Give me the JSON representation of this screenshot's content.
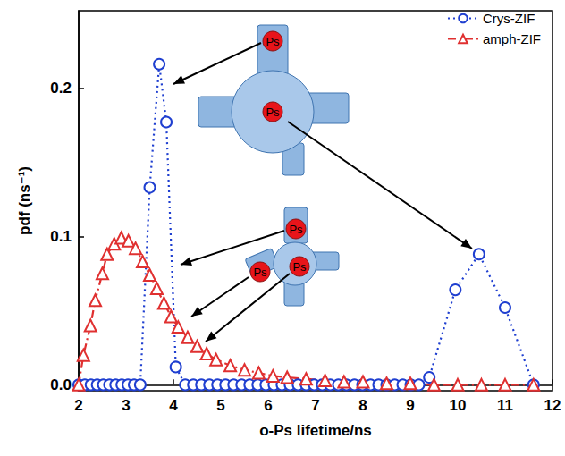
{
  "chart_data": {
    "type": "line",
    "x_label": "o-Ps lifetime/ns",
    "y_label": "pdf (ns⁻¹)",
    "xlim": [
      2,
      12
    ],
    "xticks": [
      2,
      3,
      4,
      5,
      6,
      7,
      8,
      9,
      10,
      11,
      12
    ],
    "ylim": [
      -0.004,
      0.252
    ],
    "yticks": [
      {
        "value": 0,
        "label": "0.0"
      },
      {
        "value": 0.1,
        "label": "0.1"
      },
      {
        "value": 0.2,
        "label": "0.2"
      }
    ],
    "grid": false,
    "legend": "upper right",
    "series": [
      {
        "name": "Crys-ZIF",
        "color": "#1f3fd0",
        "marker": "circle",
        "line_style": "dotted",
        "x": [
          2.0,
          2.13,
          2.26,
          2.39,
          2.52,
          2.65,
          2.78,
          2.91,
          3.04,
          3.17,
          3.3,
          3.5,
          3.7,
          3.85,
          4.05,
          4.25,
          4.42,
          4.59,
          4.76,
          4.93,
          5.1,
          5.27,
          5.44,
          5.61,
          5.78,
          5.95,
          6.12,
          6.29,
          6.46,
          6.63,
          6.8,
          6.97,
          7.14,
          7.31,
          7.48,
          7.65,
          7.82,
          7.99,
          8.16,
          8.33,
          8.5,
          8.67,
          8.84,
          9.01,
          9.18,
          9.4,
          9.95,
          10.45,
          11.0,
          11.6
        ],
        "values": [
          0,
          0,
          0,
          0,
          0,
          0,
          0,
          0,
          0,
          0,
          0,
          0.133,
          0.216,
          0.177,
          0.012,
          0,
          0,
          0,
          0,
          0,
          0,
          0,
          0,
          0,
          0,
          0,
          0,
          0,
          0,
          0,
          0,
          0,
          0,
          0,
          0,
          0,
          0,
          0,
          0,
          0,
          0,
          0,
          0,
          0,
          0,
          0.005,
          0.064,
          0.088,
          0.052,
          0
        ]
      },
      {
        "name": "amph-ZIF",
        "color": "#e03030",
        "marker": "triangle",
        "line_style": "dashdot",
        "x": [
          2.0,
          2.1,
          2.25,
          2.35,
          2.5,
          2.6,
          2.75,
          2.9,
          3.05,
          3.2,
          3.35,
          3.5,
          3.65,
          3.8,
          3.95,
          4.1,
          4.3,
          4.5,
          4.7,
          4.9,
          5.2,
          5.5,
          5.8,
          6.1,
          6.4,
          6.8,
          7.2,
          7.6,
          8.0,
          8.5,
          9.0,
          9.5,
          10.0,
          10.5,
          11.0,
          11.6
        ],
        "values": [
          0.0,
          0.02,
          0.04,
          0.057,
          0.075,
          0.088,
          0.095,
          0.099,
          0.097,
          0.092,
          0.083,
          0.074,
          0.065,
          0.055,
          0.046,
          0.039,
          0.032,
          0.026,
          0.021,
          0.017,
          0.013,
          0.01,
          0.008,
          0.006,
          0.005,
          0.004,
          0.003,
          0.002,
          0.002,
          0.001,
          0.001,
          0,
          0,
          0,
          0,
          0
        ]
      }
    ],
    "insets": [
      {
        "labels": [
          "Ps",
          "Ps"
        ]
      },
      {
        "labels": [
          "Ps",
          "Ps",
          "Ps"
        ]
      }
    ]
  }
}
